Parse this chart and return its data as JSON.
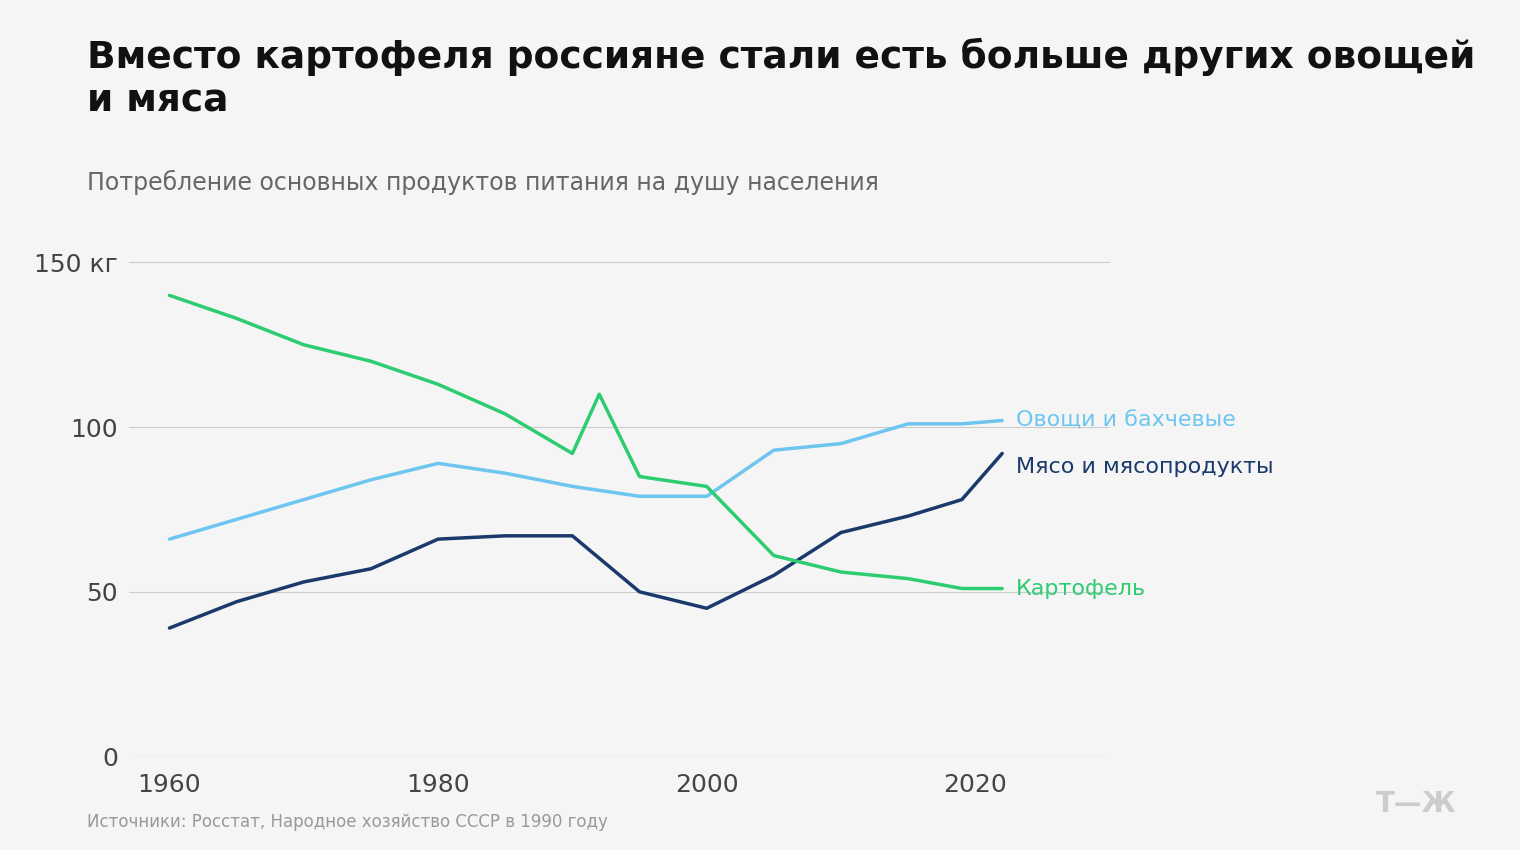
{
  "title": "Вместо картофеля россияне стали есть больше других овощей\nи мяса",
  "subtitle": "Потребление основных продуктов питания на душу населения",
  "background_color": "#f5f5f5",
  "series": {
    "vegetables": {
      "label": "Овощи и бахчевые",
      "color": "#6ec6f0",
      "x": [
        1960,
        1965,
        1970,
        1975,
        1980,
        1985,
        1990,
        1995,
        2000,
        2005,
        2010,
        2015,
        2019,
        2022
      ],
      "y": [
        66,
        72,
        78,
        84,
        89,
        86,
        82,
        79,
        79,
        93,
        95,
        101,
        101,
        102
      ]
    },
    "meat": {
      "label": "Мясо и мясопродукты",
      "color": "#1a3a6b",
      "x": [
        1960,
        1965,
        1970,
        1975,
        1980,
        1985,
        1990,
        1995,
        2000,
        2005,
        2010,
        2015,
        2019,
        2022
      ],
      "y": [
        39,
        47,
        53,
        57,
        66,
        67,
        67,
        50,
        45,
        55,
        68,
        73,
        78,
        92
      ]
    },
    "potato": {
      "label": "Картофель",
      "color": "#2ecc71",
      "x": [
        1960,
        1965,
        1970,
        1975,
        1980,
        1985,
        1990,
        1992,
        1995,
        2000,
        2005,
        2010,
        2015,
        2019,
        2022
      ],
      "y": [
        140,
        133,
        125,
        120,
        113,
        104,
        92,
        110,
        85,
        82,
        61,
        56,
        54,
        51,
        51
      ]
    }
  },
  "xlim": [
    1957,
    2030
  ],
  "ylim": [
    0,
    160
  ],
  "yticks": [
    0,
    50,
    100,
    150
  ],
  "xticks": [
    1960,
    1980,
    2000,
    2020
  ],
  "source": "Источники: Росстат, Народное хозяйство СССР в 1990 году",
  "logo_text": "Т—Ж"
}
